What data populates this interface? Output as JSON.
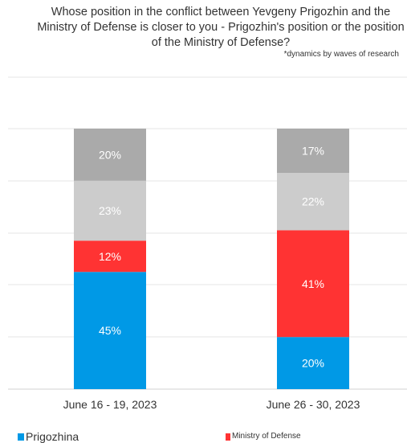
{
  "header": {
    "title": "Whose position in the conflict between Yevgeny Prigozhin and the Ministry of Defense is closer to you - Prigozhin's position or the position of the Ministry of Defense?",
    "note": "*dynamics by waves of research"
  },
  "chart_data": {
    "type": "bar",
    "stacked": true,
    "title": "Whose position in the conflict between Yevgeny Prigozhin and the Ministry of Defense is closer to you - Prigozhin's position or the position of the Ministry of Defense?",
    "categories": [
      "June 16 - 19, 2023",
      "June 26 - 30, 2023"
    ],
    "series": [
      {
        "name": "Prigozhina",
        "color": "#0099e6",
        "values": [
          45,
          20
        ],
        "labels": [
          "45%",
          "20%"
        ]
      },
      {
        "name": "Ministry of Defense",
        "color": "#ff3333",
        "values": [
          12,
          41
        ],
        "labels": [
          "12%",
          "41%"
        ]
      },
      {
        "color": "#cccccc",
        "values": [
          23,
          22
        ],
        "labels": [
          "23%",
          "22%"
        ]
      },
      {
        "color": "#aaaaaa",
        "values": [
          20,
          17
        ],
        "labels": [
          "20%",
          "17%"
        ]
      }
    ],
    "ylim": [
      0,
      100
    ],
    "grid": true,
    "legend_position": "bottom"
  },
  "legend": [
    {
      "label": "Prigozhina",
      "color": "#0099e6"
    },
    {
      "label": "Ministry of Defense",
      "color": "#ff3333"
    }
  ]
}
